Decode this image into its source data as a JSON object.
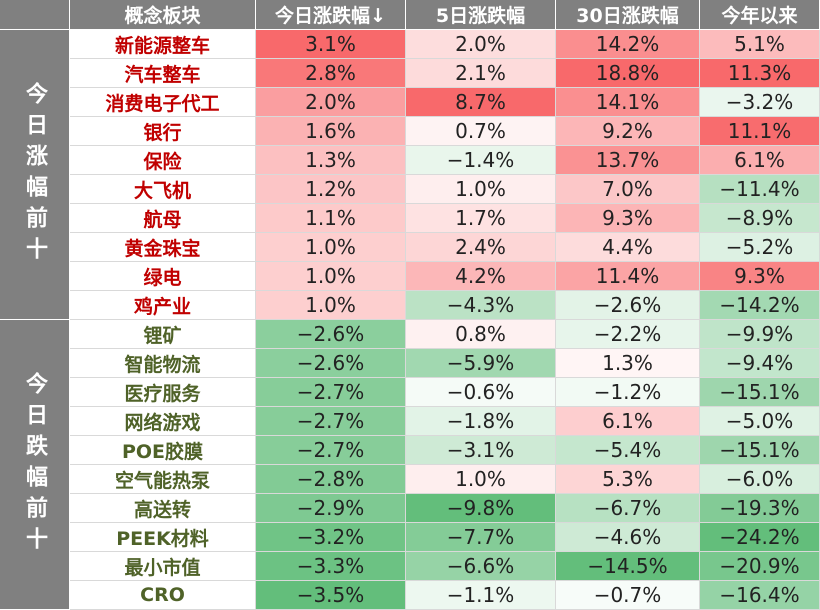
{
  "chart_data": {
    "type": "table",
    "columns": [
      "概念板块",
      "今日涨跌幅↓",
      "5日涨跌幅",
      "30日涨跌幅",
      "今年以来"
    ],
    "groups": [
      {
        "label": "今日涨幅前十",
        "name_color": "#c00000",
        "rows": [
          {
            "name": "新能源整车",
            "values": [
              "3.1%",
              "2.0%",
              "14.2%",
              "5.1%"
            ]
          },
          {
            "name": "汽车整车",
            "values": [
              "2.8%",
              "2.1%",
              "18.8%",
              "11.3%"
            ]
          },
          {
            "name": "消费电子代工",
            "values": [
              "2.0%",
              "8.7%",
              "14.1%",
              "−3.2%"
            ]
          },
          {
            "name": "银行",
            "values": [
              "1.6%",
              "0.7%",
              "9.2%",
              "11.1%"
            ]
          },
          {
            "name": "保险",
            "values": [
              "1.3%",
              "−1.4%",
              "13.7%",
              "6.1%"
            ]
          },
          {
            "name": "大飞机",
            "values": [
              "1.2%",
              "1.0%",
              "7.0%",
              "−11.4%"
            ]
          },
          {
            "name": "航母",
            "values": [
              "1.1%",
              "1.7%",
              "9.3%",
              "−8.9%"
            ]
          },
          {
            "name": "黄金珠宝",
            "values": [
              "1.0%",
              "2.4%",
              "4.4%",
              "−5.2%"
            ]
          },
          {
            "name": "绿电",
            "values": [
              "1.0%",
              "4.2%",
              "11.4%",
              "9.3%"
            ]
          },
          {
            "name": "鸡产业",
            "values": [
              "1.0%",
              "−4.3%",
              "−2.6%",
              "−14.2%"
            ]
          }
        ]
      },
      {
        "label": "今日跌幅前十",
        "name_color": "#4f6228",
        "rows": [
          {
            "name": "锂矿",
            "values": [
              "−2.6%",
              "0.8%",
              "−2.2%",
              "−9.9%"
            ]
          },
          {
            "name": "智能物流",
            "values": [
              "−2.6%",
              "−5.9%",
              "1.3%",
              "−9.4%"
            ]
          },
          {
            "name": "医疗服务",
            "values": [
              "−2.7%",
              "−0.6%",
              "−1.2%",
              "−15.1%"
            ]
          },
          {
            "name": "网络游戏",
            "values": [
              "−2.7%",
              "−1.8%",
              "6.1%",
              "−5.0%"
            ]
          },
          {
            "name": "POE胶膜",
            "values": [
              "−2.7%",
              "−3.1%",
              "−5.4%",
              "−15.1%"
            ]
          },
          {
            "name": "空气能热泵",
            "values": [
              "−2.8%",
              "1.0%",
              "5.3%",
              "−6.0%"
            ]
          },
          {
            "name": "高送转",
            "values": [
              "−2.9%",
              "−9.8%",
              "−6.7%",
              "−19.3%"
            ]
          },
          {
            "name": "PEEK材料",
            "values": [
              "−3.2%",
              "−7.7%",
              "−4.6%",
              "−24.2%"
            ]
          },
          {
            "name": "最小市值",
            "values": [
              "−3.3%",
              "−6.6%",
              "−14.5%",
              "−20.9%"
            ]
          },
          {
            "name": "CRO",
            "values": [
              "−3.5%",
              "−1.1%",
              "−0.7%",
              "−16.4%"
            ]
          }
        ]
      }
    ],
    "colors": {
      "header_bg": "#808080",
      "header_text": "#ffffff",
      "positive_max": "#f8696b",
      "negative_max": "#63be7b",
      "neutral": "#ffffff",
      "grid": "#d9d9d9"
    }
  }
}
